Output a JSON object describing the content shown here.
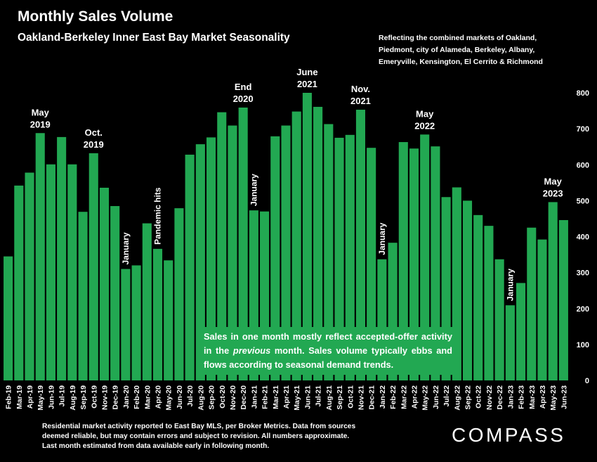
{
  "header": {
    "title": "Monthly Sales Volume",
    "subtitle": "Oakland-Berkeley Inner East Bay Market Seasonality",
    "note": "Reflecting the combined markets of Oakland, Piedmont, city of Alameda, Berkeley, Albany, Emeryville, Kensington, El Cerrito & Richmond"
  },
  "callout": {
    "part1": "Sales in one month mostly reflect accepted-offer activity in the ",
    "italic": "previous",
    "part2": " month. Sales volume typically ebbs and flows according to seasonal demand trends."
  },
  "footer": "Residential market activity reported to East Bay MLS, per Broker Metrics. Data from sources deemed reliable, but may contain errors and subject to revision. All numbers approximate. Last month estimated from data available early in following month.",
  "logo": "COMPASS",
  "colors": {
    "bar": "#22a852",
    "background": "#000000",
    "text": "#ffffff"
  },
  "chart_data": {
    "type": "bar",
    "title": "Monthly Sales Volume",
    "ylim": [
      0,
      800
    ],
    "yticks": [
      0,
      100,
      200,
      300,
      400,
      500,
      600,
      700,
      800
    ],
    "grid": false,
    "categories": [
      "Feb-19",
      "Mar-19",
      "Apr-19",
      "May-19",
      "Jun-19",
      "Jul-19",
      "Aug-19",
      "Sep-19",
      "Oct-19",
      "Nov-19",
      "Dec-19",
      "Jan-20",
      "Feb-20",
      "Mar-20",
      "Apr-20",
      "May-20",
      "Jun-20",
      "Jul-20",
      "Aug-20",
      "Sep-20",
      "Oct-20",
      "Nov-20",
      "Dec-20",
      "Jan-21",
      "Feb-21",
      "Mar-21",
      "Apr-21",
      "May-21",
      "Jun-21",
      "Jul-21",
      "Aug-21",
      "Sep-21",
      "Oct-21",
      "Nov-21",
      "Dec-21",
      "Jan-22",
      "Feb-22",
      "Mar-22",
      "Apr-22",
      "May-22",
      "Jun-22",
      "Jul-22",
      "Aug-22",
      "Sep-22",
      "Oct-22",
      "Nov-22",
      "Dec-22",
      "Jan-23",
      "Feb-23",
      "Mar-23",
      "Apr-23",
      "May-23",
      "Jun-23"
    ],
    "values": [
      345,
      542,
      578,
      688,
      601,
      677,
      601,
      469,
      632,
      536,
      485,
      310,
      320,
      437,
      366,
      334,
      479,
      628,
      657,
      676,
      746,
      709,
      759,
      473,
      470,
      679,
      709,
      748,
      800,
      761,
      713,
      675,
      683,
      753,
      647,
      337,
      383,
      663,
      645,
      684,
      651,
      510,
      537,
      500,
      460,
      430,
      337,
      209,
      271,
      425,
      392,
      496,
      446
    ],
    "annotations": [
      {
        "index": 3,
        "lines": [
          "May",
          "2019"
        ],
        "rotated": false
      },
      {
        "index": 8,
        "lines": [
          "Oct.",
          "2019"
        ],
        "rotated": false
      },
      {
        "index": 11,
        "lines": [
          "January"
        ],
        "rotated": true
      },
      {
        "index": 14,
        "lines": [
          "Pandemic hits"
        ],
        "rotated": true
      },
      {
        "index": 22,
        "lines": [
          "End",
          "2020"
        ],
        "rotated": false
      },
      {
        "index": 23,
        "lines": [
          "January"
        ],
        "rotated": true
      },
      {
        "index": 28,
        "lines": [
          "June",
          "2021"
        ],
        "rotated": false
      },
      {
        "index": 33,
        "lines": [
          "Nov.",
          "2021"
        ],
        "rotated": false
      },
      {
        "index": 35,
        "lines": [
          "January"
        ],
        "rotated": true
      },
      {
        "index": 39,
        "lines": [
          "May",
          "2022"
        ],
        "rotated": false
      },
      {
        "index": 47,
        "lines": [
          "January"
        ],
        "rotated": true
      },
      {
        "index": 51,
        "lines": [
          "May",
          "2023"
        ],
        "rotated": false
      }
    ]
  }
}
